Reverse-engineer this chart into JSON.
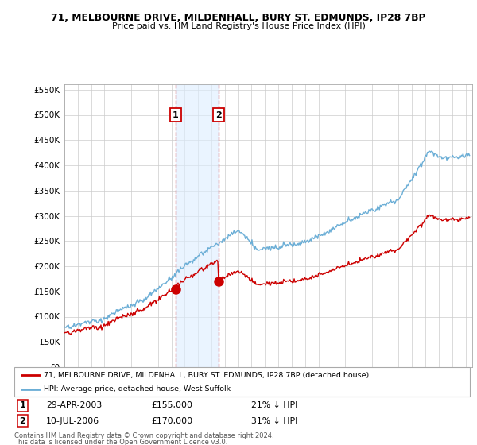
{
  "title1": "71, MELBOURNE DRIVE, MILDENHALL, BURY ST. EDMUNDS, IP28 7BP",
  "title2": "Price paid vs. HM Land Registry's House Price Index (HPI)",
  "legend_line1": "71, MELBOURNE DRIVE, MILDENHALL, BURY ST. EDMUNDS, IP28 7BP (detached house)",
  "legend_line2": "HPI: Average price, detached house, West Suffolk",
  "footer1": "Contains HM Land Registry data © Crown copyright and database right 2024.",
  "footer2": "This data is licensed under the Open Government Licence v3.0.",
  "sale1_date": "29-APR-2003",
  "sale1_price": "£155,000",
  "sale1_hpi": "21% ↓ HPI",
  "sale2_date": "10-JUL-2006",
  "sale2_price": "£170,000",
  "sale2_hpi": "31% ↓ HPI",
  "sale1_year": 2003.32,
  "sale1_value": 155000,
  "sale2_year": 2006.53,
  "sale2_value": 170000,
  "hpi_color": "#6BAED6",
  "price_color": "#CC0000",
  "ylim_min": 0,
  "ylim_max": 560000,
  "xlim_min": 1995,
  "xlim_max": 2025.5,
  "grid_color": "#CCCCCC"
}
